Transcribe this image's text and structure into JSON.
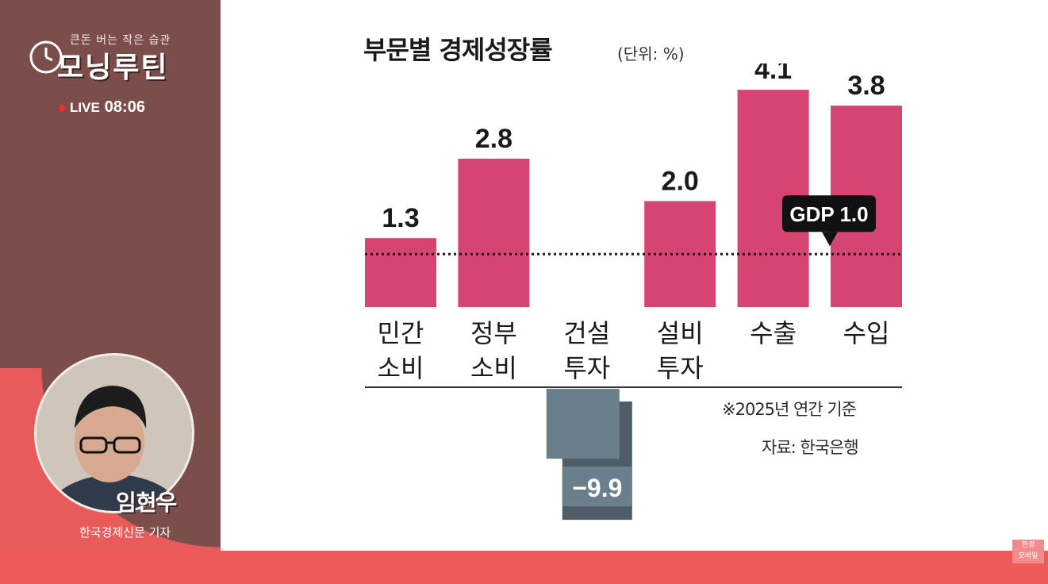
{
  "program": {
    "subtitle": "큰돈 버는 작은 습관",
    "title": "모닝루틴",
    "live_label": "LIVE",
    "live_time": "08:06"
  },
  "presenter": {
    "name": "임현우",
    "title": "한국경제신문 기자"
  },
  "chart": {
    "title": "부문별 경제성장률",
    "unit": "(단위: %)",
    "note": "※2025년 연간 기준",
    "source": "자료: 한국은행",
    "gdp_label": "GDP 1.0"
  },
  "chart_data": {
    "type": "bar",
    "categories": [
      [
        "민간",
        "소비"
      ],
      [
        "정부",
        "소비"
      ],
      [
        "건설",
        "투자"
      ],
      [
        "설비",
        "투자"
      ],
      [
        "수출"
      ],
      [
        "수입"
      ]
    ],
    "values": [
      1.3,
      2.8,
      -9.9,
      2.0,
      4.1,
      3.8
    ],
    "value_labels": [
      "1.3",
      "2.8",
      "−9.9",
      "2.0",
      "4.1",
      "3.8"
    ],
    "reference_line": 1.0,
    "colors": {
      "positive": "#d6456f",
      "negative": "#6b7e8c",
      "negative_shadow": "#4f5d68",
      "line": "#1a1a1a"
    }
  },
  "watermark": {
    "line1": "한경",
    "line2": "모바일"
  }
}
